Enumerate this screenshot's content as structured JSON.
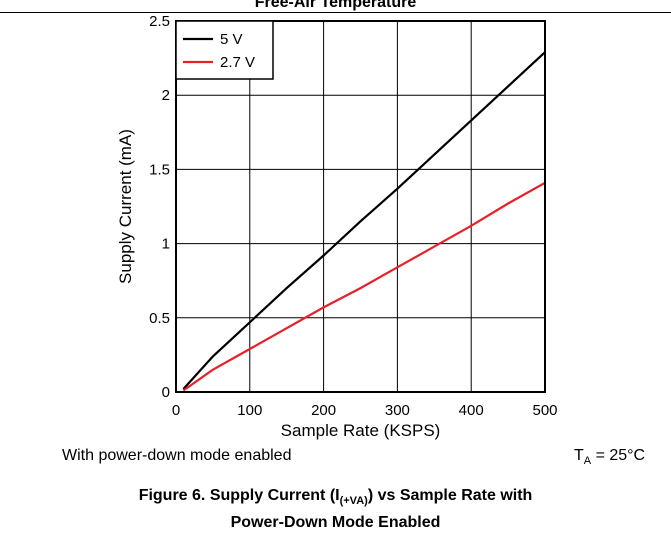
{
  "header": {
    "partial_title": "Free-Air Temperature"
  },
  "chart_data": {
    "type": "line",
    "title": "",
    "xlabel": "Sample Rate (KSPS)",
    "ylabel": "Supply Current (mA)",
    "xlim": [
      0,
      500
    ],
    "ylim": [
      0,
      2.5
    ],
    "xticks": [
      0,
      100,
      200,
      300,
      400,
      500
    ],
    "yticks": [
      0,
      0.5,
      1,
      1.5,
      2,
      2.5
    ],
    "xtick_labels": [
      "0",
      "100",
      "200",
      "300",
      "400",
      "500"
    ],
    "ytick_labels": [
      "0",
      "0.5",
      "1",
      "1.5",
      "2",
      "2.5"
    ],
    "grid": true,
    "legend_position": "top-left",
    "series": [
      {
        "name": "5 V",
        "color": "#000000",
        "x": [
          10,
          50,
          100,
          150,
          200,
          250,
          300,
          350,
          400,
          450,
          500
        ],
        "y": [
          0.02,
          0.24,
          0.47,
          0.7,
          0.92,
          1.15,
          1.37,
          1.6,
          1.83,
          2.06,
          2.29
        ]
      },
      {
        "name": "2.7 V",
        "color": "#e8202a",
        "x": [
          10,
          50,
          100,
          150,
          200,
          250,
          300,
          350,
          400,
          450,
          500
        ],
        "y": [
          0.01,
          0.15,
          0.29,
          0.43,
          0.57,
          0.7,
          0.84,
          0.98,
          1.12,
          1.27,
          1.41
        ]
      }
    ]
  },
  "notes": {
    "left": "With power-down mode enabled",
    "temp_symbol": "T",
    "temp_subscript": "A",
    "temp_value": " = 25°C"
  },
  "caption": {
    "line1_prefix": "Figure 6. Supply Current (I",
    "line1_sub": "(+VA)",
    "line1_suffix": ") vs Sample Rate with",
    "line2": "Power-Down Mode Enabled"
  }
}
